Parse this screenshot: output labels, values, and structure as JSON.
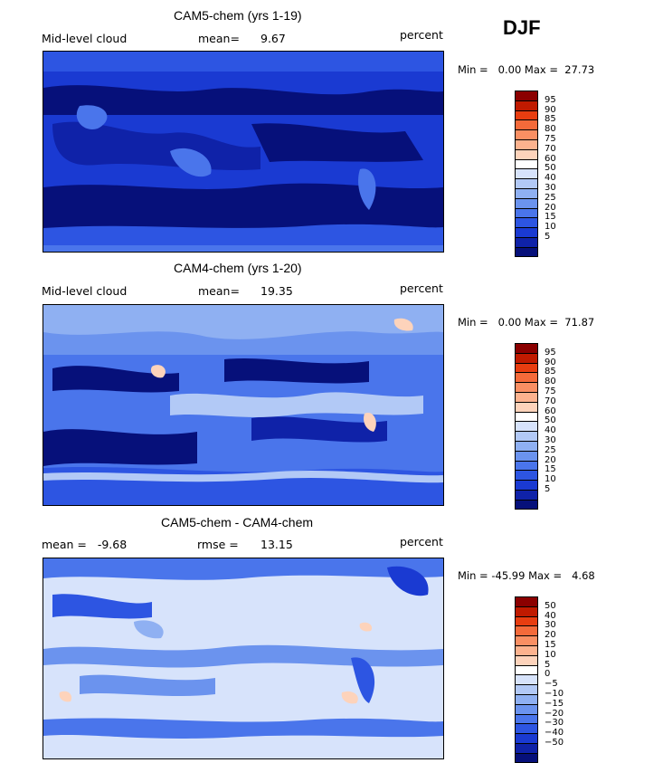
{
  "season": "DJF",
  "panels": [
    {
      "title": "CAM5-chem (yrs 1-19)",
      "left_label": "Mid-level cloud",
      "mean_label": "mean=",
      "mean_value": "9.67",
      "units": "percent",
      "minmax": "Min =   0.00 Max =  27.73",
      "colorbar": {
        "colors": [
          "#8b0000",
          "#c01a00",
          "#e83d10",
          "#f46a3a",
          "#f98f63",
          "#fcb28e",
          "#fdd3bb",
          "#ffffff",
          "#d7e3fb",
          "#b2c9f6",
          "#8fb0f2",
          "#6b93ee",
          "#4a75eb",
          "#2d55e2",
          "#1a3ad2",
          "#0f22a8",
          "#06107a"
        ],
        "labels": [
          "95",
          "90",
          "85",
          "80",
          "75",
          "70",
          "60",
          "50",
          "40",
          "30",
          "25",
          "20",
          "15",
          "10",
          "5"
        ]
      }
    },
    {
      "title": "CAM4-chem (yrs 1-20)",
      "left_label": "Mid-level cloud",
      "mean_label": "mean=",
      "mean_value": "19.35",
      "units": "percent",
      "minmax": "Min =   0.00 Max =  71.87",
      "colorbar": {
        "colors": [
          "#8b0000",
          "#c01a00",
          "#e83d10",
          "#f46a3a",
          "#f98f63",
          "#fcb28e",
          "#fdd3bb",
          "#ffffff",
          "#d7e3fb",
          "#b2c9f6",
          "#8fb0f2",
          "#6b93ee",
          "#4a75eb",
          "#2d55e2",
          "#1a3ad2",
          "#0f22a8",
          "#06107a"
        ],
        "labels": [
          "95",
          "90",
          "85",
          "80",
          "75",
          "70",
          "60",
          "50",
          "40",
          "30",
          "25",
          "20",
          "15",
          "10",
          "5"
        ]
      }
    },
    {
      "title": "CAM5-chem - CAM4-chem",
      "left_label": "mean =   -9.68",
      "mean_label": "rmse =",
      "mean_value": "13.15",
      "units": "percent",
      "minmax": "Min = -45.99 Max =   4.68",
      "colorbar": {
        "colors": [
          "#8b0000",
          "#c01a00",
          "#e83d10",
          "#f46a3a",
          "#f98f63",
          "#fcb28e",
          "#fdd3bb",
          "#ffffff",
          "#d7e3fb",
          "#b2c9f6",
          "#8fb0f2",
          "#6b93ee",
          "#4a75eb",
          "#2d55e2",
          "#1a3ad2",
          "#0f22a8",
          "#06107a"
        ],
        "labels": [
          "50",
          "40",
          "30",
          "20",
          "15",
          "10",
          "5",
          "0",
          "−5",
          "−10",
          "−15",
          "−20",
          "−30",
          "−40",
          "−50"
        ]
      }
    }
  ]
}
